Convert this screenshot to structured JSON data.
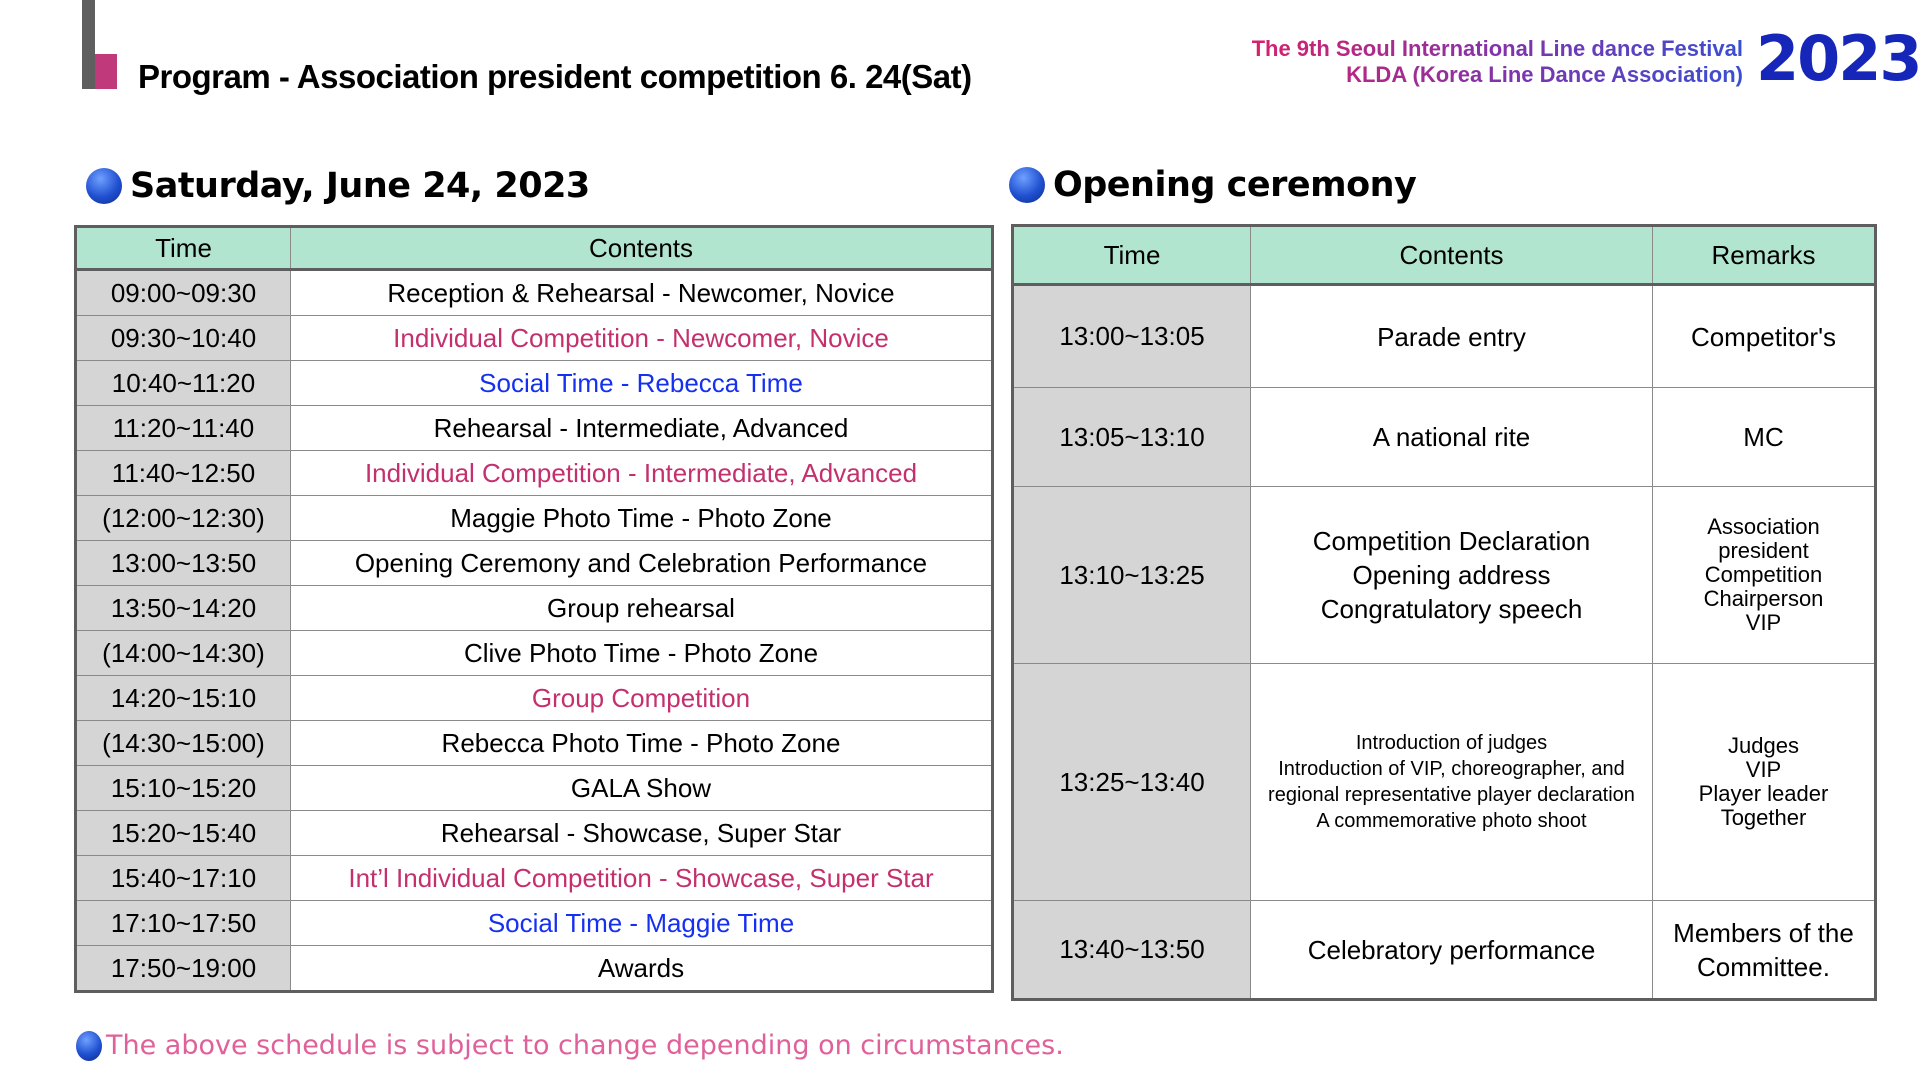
{
  "header": {
    "title": "Program - Association president competition 6. 24(Sat)",
    "festival_line1": "The 9th Seoul International Line dance Festival",
    "festival_line2": "KLDA (Korea Line Dance Association)",
    "year": "2023"
  },
  "schedule": {
    "heading": "Saturday, June 24, 2023",
    "columns": [
      "Time",
      "Contents"
    ],
    "rows": [
      {
        "time": "09:00~09:30",
        "contents": "Reception & Rehearsal - Newcomer, Novice",
        "style": "normal"
      },
      {
        "time": "09:30~10:40",
        "contents": "Individual Competition - Newcomer, Novice",
        "style": "pink"
      },
      {
        "time": "10:40~11:20",
        "contents": "Social Time - Rebecca Time",
        "style": "blue"
      },
      {
        "time": "11:20~11:40",
        "contents": "Rehearsal - Intermediate, Advanced",
        "style": "normal"
      },
      {
        "time": "11:40~12:50",
        "contents": "Individual Competition - Intermediate, Advanced",
        "style": "pink"
      },
      {
        "time": "(12:00~12:30)",
        "contents": "Maggie Photo Time - Photo Zone",
        "style": "normal"
      },
      {
        "time": "13:00~13:50",
        "contents": "Opening Ceremony and Celebration Performance",
        "style": "normal"
      },
      {
        "time": "13:50~14:20",
        "contents": "Group rehearsal",
        "style": "normal"
      },
      {
        "time": "(14:00~14:30)",
        "contents": "Clive Photo Time - Photo Zone",
        "style": "normal"
      },
      {
        "time": "14:20~15:10",
        "contents": "Group Competition",
        "style": "pink"
      },
      {
        "time": "(14:30~15:00)",
        "contents": "Rebecca Photo Time - Photo Zone",
        "style": "normal"
      },
      {
        "time": "15:10~15:20",
        "contents": "GALA Show",
        "style": "normal"
      },
      {
        "time": "15:20~15:40",
        "contents": "Rehearsal - Showcase, Super Star",
        "style": "normal"
      },
      {
        "time": "15:40~17:10",
        "contents": "Int’l Individual Competition - Showcase, Super Star",
        "style": "pink"
      },
      {
        "time": "17:10~17:50",
        "contents": "Social Time - Maggie Time",
        "style": "blue"
      },
      {
        "time": "17:50~19:00",
        "contents": "Awards",
        "style": "normal"
      }
    ]
  },
  "ceremony": {
    "heading": "Opening ceremony",
    "columns": [
      "Time",
      "Contents",
      "Remarks"
    ],
    "rows": [
      {
        "time": "13:00~13:05",
        "contents": [
          "Parade entry"
        ],
        "remarks": [
          "Competitor's"
        ],
        "size": "normal"
      },
      {
        "time": "13:05~13:10",
        "contents": [
          "A national rite"
        ],
        "remarks": [
          "MC"
        ],
        "size": "normal"
      },
      {
        "time": "13:10~13:25",
        "contents": [
          "Competition Declaration",
          "Opening address",
          "Congratulatory speech"
        ],
        "remarks": [
          "Association",
          "president",
          "Competition",
          "Chairperson",
          "VIP"
        ],
        "size": "rem-small"
      },
      {
        "time": "13:25~13:40",
        "contents": [
          "Introduction of judges",
          "Introduction of VIP, choreographer, and regional representative player declaration",
          "A commemorative photo shoot"
        ],
        "remarks": [
          "Judges",
          "VIP",
          "Player leader",
          "Together"
        ],
        "size": "small"
      },
      {
        "time": "13:40~13:50",
        "contents": [
          "Celebratory performance"
        ],
        "remarks": [
          "Members of the",
          "Committee."
        ],
        "size": "normal"
      }
    ]
  },
  "footnote": "The above schedule is subject to change depending on circumstances.",
  "colors": {
    "header_bg": "#b2e5d0",
    "time_bg": "#d5d5d5",
    "pink": "#c4306e",
    "blue": "#1530f0",
    "year": "#1626b8",
    "footnote": "#e0609a"
  }
}
